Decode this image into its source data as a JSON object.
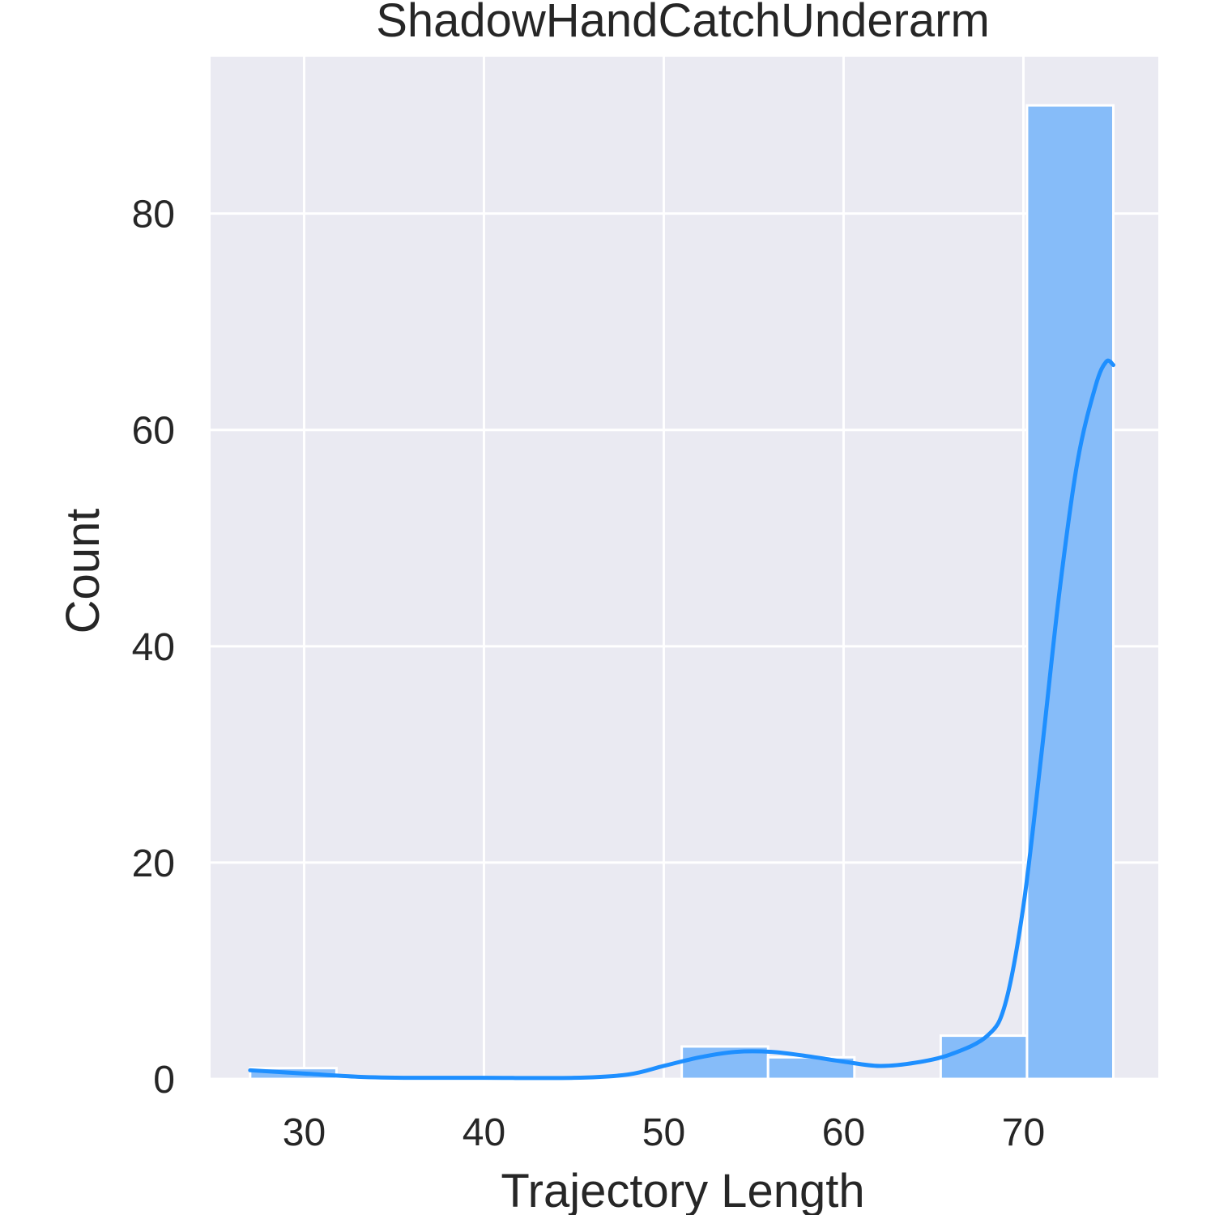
{
  "chart_data": {
    "type": "bar",
    "title": "ShadowHandCatchUnderarm",
    "xlabel": "Trajectory Length",
    "ylabel": "Count",
    "xlim": [
      24.8,
      77.5
    ],
    "ylim": [
      0,
      94.5
    ],
    "xticks": [
      30,
      40,
      50,
      60,
      70
    ],
    "yticks": [
      0,
      20,
      40,
      60,
      80
    ],
    "bin_edges": [
      27,
      31.8,
      36.6,
      41.4,
      46.2,
      51.0,
      55.8,
      60.6,
      65.4,
      70.2,
      75.0
    ],
    "counts": [
      1,
      0,
      0,
      0,
      0,
      3,
      2,
      0,
      4,
      90
    ],
    "kde": {
      "x": [
        27,
        30,
        33,
        36,
        40,
        45,
        48,
        50,
        52,
        54,
        56,
        58,
        60,
        62,
        64,
        66,
        68,
        69,
        70,
        71,
        72,
        73,
        74,
        74.6,
        75
      ],
      "y": [
        0.8,
        0.5,
        0.2,
        0.1,
        0.1,
        0.1,
        0.4,
        1.2,
        2.0,
        2.5,
        2.5,
        2.1,
        1.6,
        1.2,
        1.5,
        2.3,
        4.0,
        7.0,
        16,
        30,
        45,
        57,
        64,
        66.3,
        66.0
      ]
    },
    "grid": true,
    "legend": "none",
    "colors": {
      "background": "#eaeaf2",
      "grid": "#ffffff",
      "bar": "#86bcf9",
      "bar_edge": "#ffffff",
      "kde": "#1e8fff"
    }
  }
}
